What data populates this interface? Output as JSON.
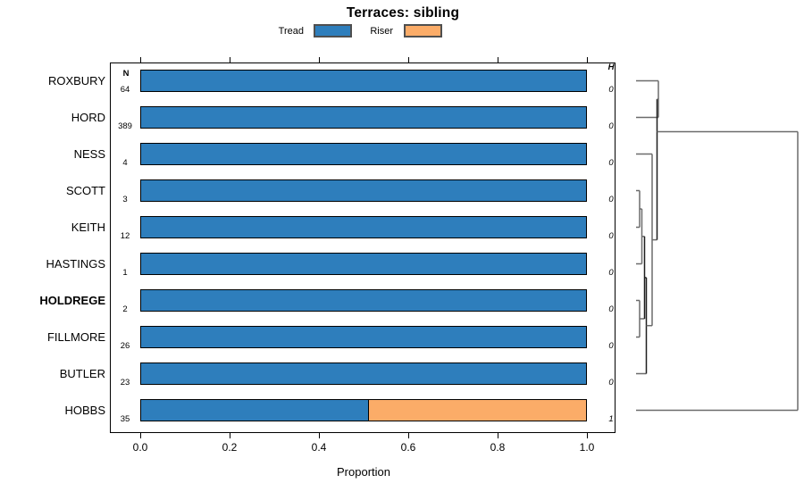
{
  "title": "Terraces: sibling",
  "legend": {
    "items": [
      {
        "label": "Tread",
        "color": "#2e7ebc"
      },
      {
        "label": "Riser",
        "color": "#fbac68"
      }
    ],
    "swatch_border": "#4f4f4f"
  },
  "axis": {
    "label": "Proportion",
    "tick_labels": [
      "0.0",
      "0.2",
      "0.4",
      "0.6",
      "0.8",
      "1.0"
    ]
  },
  "chart_data": {
    "type": "bar",
    "orientation": "horizontal",
    "stacked": true,
    "title": "Terraces: sibling",
    "xlabel": "Proportion",
    "xlim": [
      0,
      1
    ],
    "xticks": [
      0.0,
      0.2,
      0.4,
      0.6,
      0.8,
      1.0
    ],
    "grid": false,
    "legend_position": "top",
    "categories": [
      "ROXBURY",
      "HORD",
      "NESS",
      "SCOTT",
      "KEITH",
      "HASTINGS",
      "HOLDREGE",
      "FILLMORE",
      "BUTLER",
      "HOBBS"
    ],
    "highlighted_category": "HOLDREGE",
    "series": [
      {
        "name": "Tread",
        "color": "#2e7ebc",
        "values": [
          1.0,
          1.0,
          1.0,
          1.0,
          1.0,
          1.0,
          1.0,
          1.0,
          1.0,
          0.51
        ]
      },
      {
        "name": "Riser",
        "color": "#fbac68",
        "values": [
          0.0,
          0.0,
          0.0,
          0.0,
          0.0,
          0.0,
          0.0,
          0.0,
          0.0,
          0.49
        ]
      }
    ],
    "n_column": {
      "header": "N",
      "values": [
        "64",
        "389",
        "4",
        "3",
        "12",
        "1",
        "2",
        "26",
        "23",
        "35"
      ]
    },
    "h_column": {
      "header": "H",
      "values": [
        "0",
        "0",
        "0",
        "0",
        "0",
        "0",
        "0",
        "0",
        "0",
        "1"
      ]
    },
    "dendrogram": {
      "side": "right",
      "root_height": 1,
      "merges": [
        [
          "SCOTT",
          "KEITH"
        ],
        [
          "SCOTT+KEITH",
          "HASTINGS"
        ],
        [
          "HOLDREGE",
          "FILLMORE"
        ],
        [
          "SCOTT+KEITH+HASTINGS",
          "HOLDREGE+FILLMORE"
        ],
        [
          "previous",
          "BUTLER"
        ],
        [
          "NESS",
          "previous"
        ],
        [
          "ROXBURY+HORD",
          "previous"
        ],
        [
          "all-others",
          "HOBBS"
        ]
      ]
    }
  }
}
